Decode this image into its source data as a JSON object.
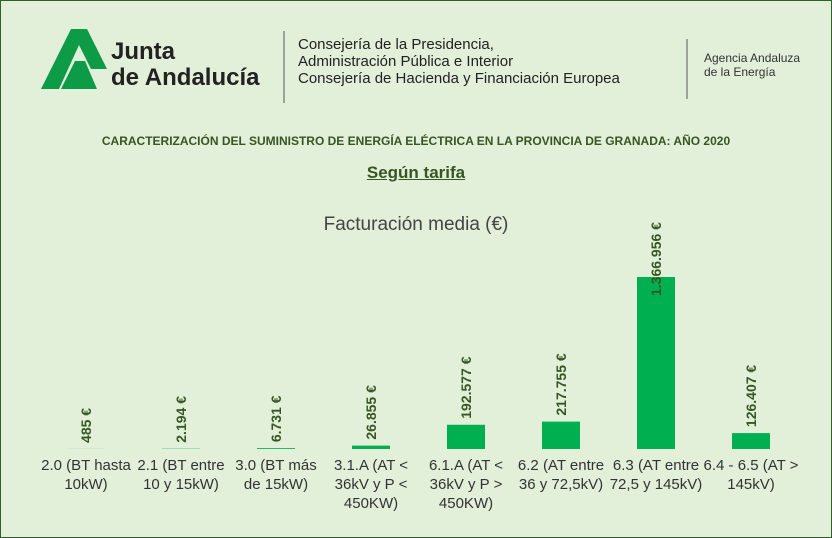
{
  "header": {
    "logo_lines": [
      "Junta",
      "de Andalucía"
    ],
    "consejeria_lines": [
      "Consejería de la Presidencia,",
      "Administración Pública e Interior",
      "Consejería de Hacienda y Financiación Europea"
    ],
    "agency_lines": [
      "Agencia Andaluza",
      "de la Energía"
    ]
  },
  "chart_data": {
    "type": "bar",
    "title": "CARACTERIZACIÓN DEL SUMINISTRO DE ENERGÍA ELÉCTRICA EN LA PROVINCIA DE GRANADA:  AÑO 2020",
    "subtitle": "Según tarifa",
    "chart_title": "Facturación media (€)",
    "categories": [
      "2.0 (BT hasta 10kW)",
      "2.1 (BT entre 10 y 15kW)",
      "3.0 (BT más de 15kW)",
      "3.1.A (AT < 36kV y P < 450KW)",
      "6.1.A (AT < 36kV y P > 450KW)",
      "6.2 (AT entre 36 y 72,5kV)",
      "6.3 (AT entre 72,5 y 145kV)",
      "6.4 - 6.5 (AT > 145kV)"
    ],
    "values": [
      485,
      2194,
      6731,
      26855,
      192577,
      217755,
      1366956,
      126407
    ],
    "value_labels": [
      "485 €",
      "2.194 €",
      "6.731 €",
      "26.855 €",
      "192.577 €",
      "217.755 €",
      "1.366.956 €",
      "126.407 €"
    ],
    "color": "#00b050"
  }
}
